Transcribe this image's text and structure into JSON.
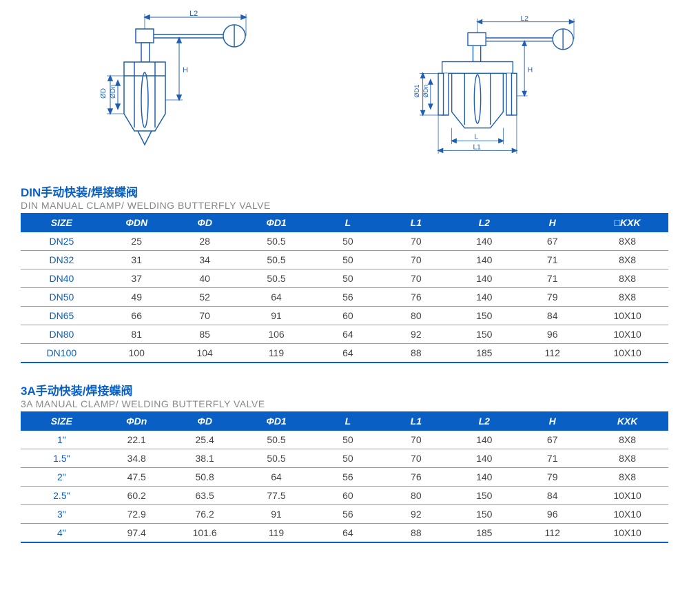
{
  "colors": {
    "brand_blue": "#0a5fc4",
    "diagram_stroke": "#1f5fb0",
    "text_gray": "#888",
    "row_border": "#999",
    "body_text": "#444",
    "bg": "#ffffff"
  },
  "diagrams": {
    "left": {
      "labels": [
        "L2",
        "H",
        "ØD",
        "ØDn"
      ]
    },
    "right": {
      "labels": [
        "L2",
        "H",
        "ØD1",
        "ØDn",
        "L",
        "L1"
      ]
    }
  },
  "table_din": {
    "title_cn": "DIN手动快装/焊接蝶阀",
    "title_en": "DIN MANUAL CLAMP/ WELDING BUTTERFLY VALVE",
    "columns": [
      "SIZE",
      "ΦDN",
      "ΦD",
      "ΦD1",
      "L",
      "L1",
      "L2",
      "H",
      "□KXK"
    ],
    "rows": [
      [
        "DN25",
        "25",
        "28",
        "50.5",
        "50",
        "70",
        "140",
        "67",
        "8X8"
      ],
      [
        "DN32",
        "31",
        "34",
        "50.5",
        "50",
        "70",
        "140",
        "71",
        "8X8"
      ],
      [
        "DN40",
        "37",
        "40",
        "50.5",
        "50",
        "70",
        "140",
        "71",
        "8X8"
      ],
      [
        "DN50",
        "49",
        "52",
        "64",
        "56",
        "76",
        "140",
        "79",
        "8X8"
      ],
      [
        "DN65",
        "66",
        "70",
        "91",
        "60",
        "80",
        "150",
        "84",
        "10X10"
      ],
      [
        "DN80",
        "81",
        "85",
        "106",
        "64",
        "92",
        "150",
        "96",
        "10X10"
      ],
      [
        "DN100",
        "100",
        "104",
        "119",
        "64",
        "88",
        "185",
        "112",
        "10X10"
      ]
    ],
    "col_widths_pct": [
      12,
      10,
      10,
      11,
      10,
      10,
      10,
      10,
      12
    ]
  },
  "table_3a": {
    "title_cn": "3A手动快装/焊接蝶阀",
    "title_en": "3A MANUAL CLAMP/ WELDING BUTTERFLY VALVE",
    "columns": [
      "SIZE",
      "ΦDn",
      "ΦD",
      "ΦD1",
      "L",
      "L1",
      "L2",
      "H",
      "KXK"
    ],
    "rows": [
      [
        "1\"",
        "22.1",
        "25.4",
        "50.5",
        "50",
        "70",
        "140",
        "67",
        "8X8"
      ],
      [
        "1.5\"",
        "34.8",
        "38.1",
        "50.5",
        "50",
        "70",
        "140",
        "71",
        "8X8"
      ],
      [
        "2\"",
        "47.5",
        "50.8",
        "64",
        "56",
        "76",
        "140",
        "79",
        "8X8"
      ],
      [
        "2.5\"",
        "60.2",
        "63.5",
        "77.5",
        "60",
        "80",
        "150",
        "84",
        "10X10"
      ],
      [
        "3\"",
        "72.9",
        "76.2",
        "91",
        "56",
        "92",
        "150",
        "96",
        "10X10"
      ],
      [
        "4\"",
        "97.4",
        "101.6",
        "119",
        "64",
        "88",
        "185",
        "112",
        "10X10"
      ]
    ],
    "col_widths_pct": [
      12,
      10,
      10,
      11,
      10,
      10,
      10,
      10,
      12
    ]
  }
}
